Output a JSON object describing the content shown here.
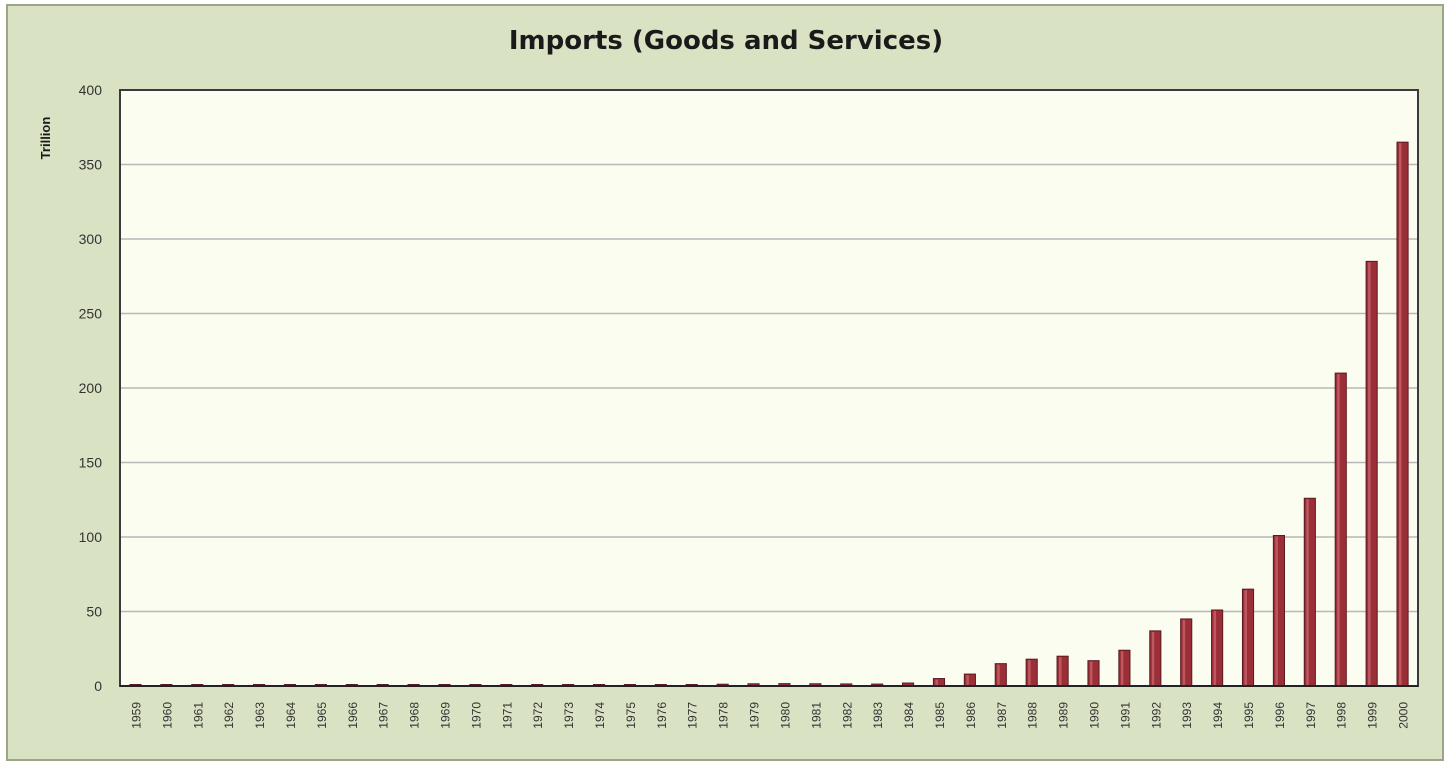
{
  "chart_data": {
    "type": "bar",
    "title": "Imports (Goods and Services)",
    "xlabel": "",
    "ylabel": "Trillion",
    "ylim": [
      0,
      400
    ],
    "yticks": [
      0,
      50,
      100,
      150,
      200,
      250,
      300,
      350,
      400
    ],
    "grid": true,
    "legend": "none",
    "categories": [
      "1959",
      "1960",
      "1961",
      "1962",
      "1963",
      "1964",
      "1965",
      "1966",
      "1967",
      "1968",
      "1969",
      "1970",
      "1971",
      "1972",
      "1973",
      "1974",
      "1975",
      "1976",
      "1977",
      "1978",
      "1979",
      "1980",
      "1981",
      "1982",
      "1983",
      "1984",
      "1985",
      "1986",
      "1987",
      "1988",
      "1989",
      "1990",
      "1991",
      "1992",
      "1993",
      "1994",
      "1995",
      "1996",
      "1997",
      "1998",
      "1999",
      "2000"
    ],
    "values": [
      0.1,
      0.1,
      0.1,
      0.1,
      0.1,
      0.1,
      0.2,
      0.2,
      0.2,
      0.3,
      0.3,
      0.4,
      0.4,
      0.5,
      0.6,
      0.7,
      0.8,
      0.9,
      1.0,
      1.2,
      1.5,
      1.6,
      1.5,
      1.4,
      1.3,
      2,
      5,
      8,
      15,
      18,
      20,
      17,
      24,
      37,
      45,
      51,
      65,
      101,
      126,
      210,
      285,
      365
    ],
    "colors": {
      "bar": "#9b2f37",
      "bar_edge": "#5a1a1f",
      "bar_highlight": "#c7626a",
      "plot_bg": "#fafdf0",
      "frame_bg": "#d9e2c3",
      "grid": "#b8b8b8",
      "axis": "#333333"
    }
  }
}
